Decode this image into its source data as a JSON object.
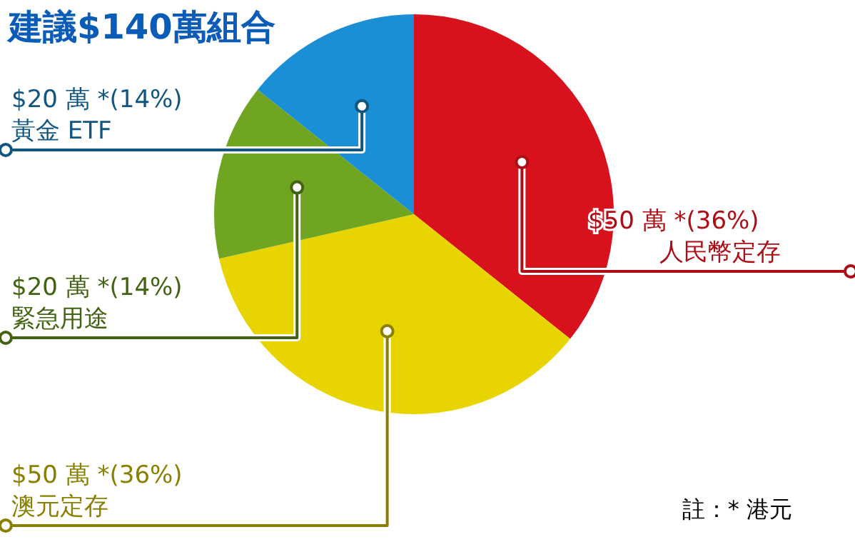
{
  "chart_data": {
    "type": "pie",
    "title": "建議$140萬組合",
    "categories": [
      "人民幣定存",
      "澳元定存",
      "緊急用途",
      "黃金 ETF"
    ],
    "values": [
      50,
      50,
      20,
      20
    ],
    "value_labels": [
      "$50 萬 *(36%)",
      "$50 萬 *(36%)",
      "$20 萬 *(14%)",
      "$20 萬 *(14%)"
    ],
    "colors": [
      "#d8121c",
      "#e8d400",
      "#6fa520",
      "#1b8fd6"
    ],
    "annotations": [
      "註：* 港元"
    ]
  }
}
